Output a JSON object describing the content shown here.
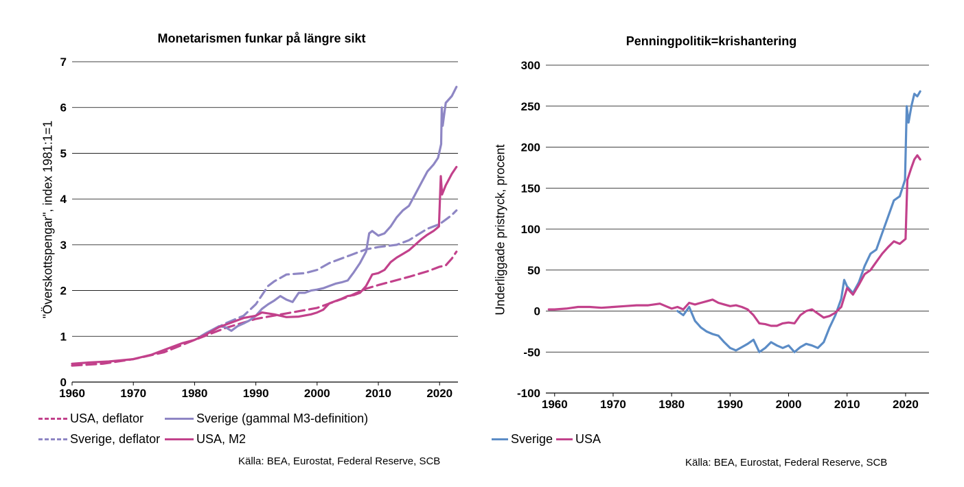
{
  "left": {
    "source": "Källa: BEA, Eurostat, Federal Reserve, SCB",
    "legend": [
      {
        "label": "USA, deflator",
        "color": "#c2418b",
        "dash": true
      },
      {
        "label": "Sverige (gammal M3-definition)",
        "color": "#8e86c4",
        "dash": false
      },
      {
        "label": "Sverige, deflator",
        "color": "#8e86c4",
        "dash": true
      },
      {
        "label": "USA, M2",
        "color": "#c2418b",
        "dash": false
      }
    ]
  },
  "right": {
    "source": "Källa: BEA, Eurostat, Federal Reserve, SCB",
    "legend": [
      {
        "label": "Sverige",
        "color": "#5b8cc6",
        "dash": false
      },
      {
        "label": "USA",
        "color": "#c2418b",
        "dash": false
      }
    ]
  },
  "chart_data": [
    {
      "type": "line",
      "title": "Monetarismen funkar på längre sikt",
      "xlabel": "",
      "ylabel": "\"Överskottspengar\", index 1981:1=1",
      "xlim": [
        1960,
        2023
      ],
      "ylim": [
        0,
        7
      ],
      "xticks": [
        1960,
        1970,
        1980,
        1990,
        2000,
        2010,
        2020
      ],
      "yticks": [
        0,
        1,
        2,
        3,
        4,
        5,
        6,
        7
      ],
      "grid": true,
      "legend_position": "bottom",
      "series": [
        {
          "name": "USA, deflator",
          "color": "#c2418b",
          "dash": true,
          "points": [
            [
              1960,
              0.36
            ],
            [
              1965,
              0.4
            ],
            [
              1970,
              0.5
            ],
            [
              1975,
              0.65
            ],
            [
              1980,
              0.92
            ],
            [
              1985,
              1.18
            ],
            [
              1990,
              1.38
            ],
            [
              1995,
              1.5
            ],
            [
              2000,
              1.62
            ],
            [
              2005,
              1.86
            ],
            [
              2008,
              2.04
            ],
            [
              2010,
              2.12
            ],
            [
              2015,
              2.3
            ],
            [
              2018,
              2.42
            ],
            [
              2020,
              2.52
            ],
            [
              2021,
              2.55
            ],
            [
              2022,
              2.7
            ],
            [
              2022.75,
              2.85
            ]
          ]
        },
        {
          "name": "Sverige (gammal M3-definition)",
          "color": "#8e86c4",
          "dash": false,
          "points": [
            [
              1981,
              1.0
            ],
            [
              1982,
              1.08
            ],
            [
              1983,
              1.15
            ],
            [
              1984,
              1.22
            ],
            [
              1985,
              1.2
            ],
            [
              1986,
              1.12
            ],
            [
              1987,
              1.22
            ],
            [
              1988,
              1.28
            ],
            [
              1989,
              1.35
            ],
            [
              1990,
              1.45
            ],
            [
              1991,
              1.6
            ],
            [
              1992,
              1.7
            ],
            [
              1993,
              1.78
            ],
            [
              1994,
              1.88
            ],
            [
              1995,
              1.8
            ],
            [
              1996,
              1.75
            ],
            [
              1997,
              1.95
            ],
            [
              1998,
              1.95
            ],
            [
              1999,
              2.0
            ],
            [
              2000,
              2.02
            ],
            [
              2001,
              2.05
            ],
            [
              2002,
              2.1
            ],
            [
              2003,
              2.15
            ],
            [
              2004,
              2.18
            ],
            [
              2005,
              2.22
            ],
            [
              2006,
              2.4
            ],
            [
              2007,
              2.6
            ],
            [
              2008,
              2.85
            ],
            [
              2008.5,
              3.25
            ],
            [
              2009,
              3.3
            ],
            [
              2010,
              3.2
            ],
            [
              2011,
              3.25
            ],
            [
              2012,
              3.4
            ],
            [
              2013,
              3.6
            ],
            [
              2014,
              3.75
            ],
            [
              2015,
              3.85
            ],
            [
              2016,
              4.1
            ],
            [
              2017,
              4.35
            ],
            [
              2018,
              4.6
            ],
            [
              2019,
              4.75
            ],
            [
              2019.75,
              4.9
            ],
            [
              2020.25,
              5.2
            ],
            [
              2020.35,
              6.0
            ],
            [
              2020.5,
              5.6
            ],
            [
              2021,
              6.1
            ],
            [
              2022,
              6.25
            ],
            [
              2022.75,
              6.45
            ]
          ]
        },
        {
          "name": "Sverige, deflator",
          "color": "#8e86c4",
          "dash": true,
          "points": [
            [
              1981,
              1.0
            ],
            [
              1985,
              1.28
            ],
            [
              1988,
              1.45
            ],
            [
              1990,
              1.7
            ],
            [
              1992,
              2.1
            ],
            [
              1993,
              2.2
            ],
            [
              1995,
              2.35
            ],
            [
              1998,
              2.38
            ],
            [
              2000,
              2.45
            ],
            [
              2002,
              2.6
            ],
            [
              2005,
              2.75
            ],
            [
              2008,
              2.9
            ],
            [
              2010,
              2.95
            ],
            [
              2013,
              3.0
            ],
            [
              2015,
              3.1
            ],
            [
              2018,
              3.35
            ],
            [
              2020,
              3.45
            ],
            [
              2021,
              3.55
            ],
            [
              2022,
              3.65
            ],
            [
              2022.75,
              3.75
            ]
          ]
        },
        {
          "name": "USA, M2",
          "color": "#c2418b",
          "dash": false,
          "points": [
            [
              1960,
              0.4
            ],
            [
              1963,
              0.43
            ],
            [
              1966,
              0.45
            ],
            [
              1970,
              0.5
            ],
            [
              1973,
              0.6
            ],
            [
              1975,
              0.7
            ],
            [
              1978,
              0.85
            ],
            [
              1980,
              0.92
            ],
            [
              1982,
              1.05
            ],
            [
              1984,
              1.2
            ],
            [
              1986,
              1.3
            ],
            [
              1988,
              1.4
            ],
            [
              1990,
              1.45
            ],
            [
              1991,
              1.52
            ],
            [
              1993,
              1.48
            ],
            [
              1995,
              1.42
            ],
            [
              1997,
              1.43
            ],
            [
              1999,
              1.48
            ],
            [
              2000,
              1.52
            ],
            [
              2001,
              1.58
            ],
            [
              2002,
              1.72
            ],
            [
              2004,
              1.82
            ],
            [
              2005,
              1.88
            ],
            [
              2006,
              1.9
            ],
            [
              2007,
              1.95
            ],
            [
              2008,
              2.1
            ],
            [
              2009,
              2.35
            ],
            [
              2010,
              2.38
            ],
            [
              2011,
              2.45
            ],
            [
              2012,
              2.62
            ],
            [
              2013,
              2.72
            ],
            [
              2014,
              2.8
            ],
            [
              2015,
              2.88
            ],
            [
              2016,
              3.0
            ],
            [
              2017,
              3.12
            ],
            [
              2018,
              3.22
            ],
            [
              2019,
              3.3
            ],
            [
              2019.9,
              3.4
            ],
            [
              2020.2,
              4.5
            ],
            [
              2020.4,
              4.1
            ],
            [
              2021,
              4.3
            ],
            [
              2022,
              4.55
            ],
            [
              2022.75,
              4.7
            ]
          ]
        }
      ]
    },
    {
      "type": "line",
      "title": "Penningpolitik=krishantering",
      "xlabel": "",
      "ylabel": "Underliggade pristryck, procent",
      "xlim": [
        1958.5,
        2024
      ],
      "ylim": [
        -100,
        300
      ],
      "xticks": [
        1960,
        1970,
        1980,
        1990,
        2000,
        2010,
        2020
      ],
      "yticks": [
        -100,
        -50,
        0,
        50,
        100,
        150,
        200,
        250,
        300
      ],
      "grid": true,
      "legend_position": "bottom-left",
      "series": [
        {
          "name": "Sverige",
          "color": "#5b8cc6",
          "points": [
            [
              1981,
              0
            ],
            [
              1982,
              -5
            ],
            [
              1983,
              5
            ],
            [
              1984,
              -12
            ],
            [
              1985,
              -20
            ],
            [
              1986,
              -25
            ],
            [
              1987,
              -28
            ],
            [
              1988,
              -30
            ],
            [
              1989,
              -38
            ],
            [
              1990,
              -45
            ],
            [
              1991,
              -48
            ],
            [
              1992,
              -44
            ],
            [
              1993,
              -40
            ],
            [
              1994,
              -35
            ],
            [
              1995,
              -50
            ],
            [
              1996,
              -45
            ],
            [
              1997,
              -38
            ],
            [
              1998,
              -42
            ],
            [
              1999,
              -45
            ],
            [
              2000,
              -42
            ],
            [
              2001,
              -50
            ],
            [
              2002,
              -44
            ],
            [
              2003,
              -40
            ],
            [
              2004,
              -42
            ],
            [
              2005,
              -45
            ],
            [
              2006,
              -38
            ],
            [
              2007,
              -20
            ],
            [
              2008,
              -5
            ],
            [
              2009,
              15
            ],
            [
              2009.5,
              38
            ],
            [
              2010,
              30
            ],
            [
              2011,
              22
            ],
            [
              2012,
              35
            ],
            [
              2013,
              55
            ],
            [
              2014,
              70
            ],
            [
              2015,
              75
            ],
            [
              2016,
              95
            ],
            [
              2017,
              115
            ],
            [
              2018,
              135
            ],
            [
              2019,
              140
            ],
            [
              2019.9,
              160
            ],
            [
              2020.2,
              250
            ],
            [
              2020.5,
              230
            ],
            [
              2021,
              250
            ],
            [
              2021.5,
              265
            ],
            [
              2022,
              262
            ],
            [
              2022.5,
              268
            ]
          ]
        },
        {
          "name": "USA",
          "color": "#c2418b",
          "points": [
            [
              1959,
              2
            ],
            [
              1960,
              2
            ],
            [
              1962,
              3
            ],
            [
              1964,
              5
            ],
            [
              1966,
              5
            ],
            [
              1968,
              4
            ],
            [
              1970,
              5
            ],
            [
              1972,
              6
            ],
            [
              1974,
              7
            ],
            [
              1976,
              7
            ],
            [
              1978,
              9
            ],
            [
              1979,
              6
            ],
            [
              1980,
              3
            ],
            [
              1981,
              5
            ],
            [
              1982,
              2
            ],
            [
              1983,
              10
            ],
            [
              1984,
              8
            ],
            [
              1985,
              10
            ],
            [
              1986,
              12
            ],
            [
              1987,
              14
            ],
            [
              1988,
              10
            ],
            [
              1989,
              8
            ],
            [
              1990,
              6
            ],
            [
              1991,
              7
            ],
            [
              1992,
              5
            ],
            [
              1993,
              2
            ],
            [
              1994,
              -5
            ],
            [
              1995,
              -15
            ],
            [
              1996,
              -16
            ],
            [
              1997,
              -18
            ],
            [
              1998,
              -18
            ],
            [
              1999,
              -15
            ],
            [
              2000,
              -14
            ],
            [
              2001,
              -15
            ],
            [
              2002,
              -5
            ],
            [
              2003,
              0
            ],
            [
              2004,
              2
            ],
            [
              2005,
              -3
            ],
            [
              2006,
              -8
            ],
            [
              2007,
              -6
            ],
            [
              2008,
              -2
            ],
            [
              2009,
              5
            ],
            [
              2010,
              28
            ],
            [
              2011,
              20
            ],
            [
              2012,
              32
            ],
            [
              2013,
              45
            ],
            [
              2014,
              50
            ],
            [
              2015,
              60
            ],
            [
              2016,
              70
            ],
            [
              2017,
              78
            ],
            [
              2018,
              85
            ],
            [
              2019,
              82
            ],
            [
              2020,
              88
            ],
            [
              2020.3,
              160
            ],
            [
              2021,
              175
            ],
            [
              2021.5,
              185
            ],
            [
              2022,
              190
            ],
            [
              2022.5,
              185
            ]
          ]
        }
      ]
    }
  ]
}
